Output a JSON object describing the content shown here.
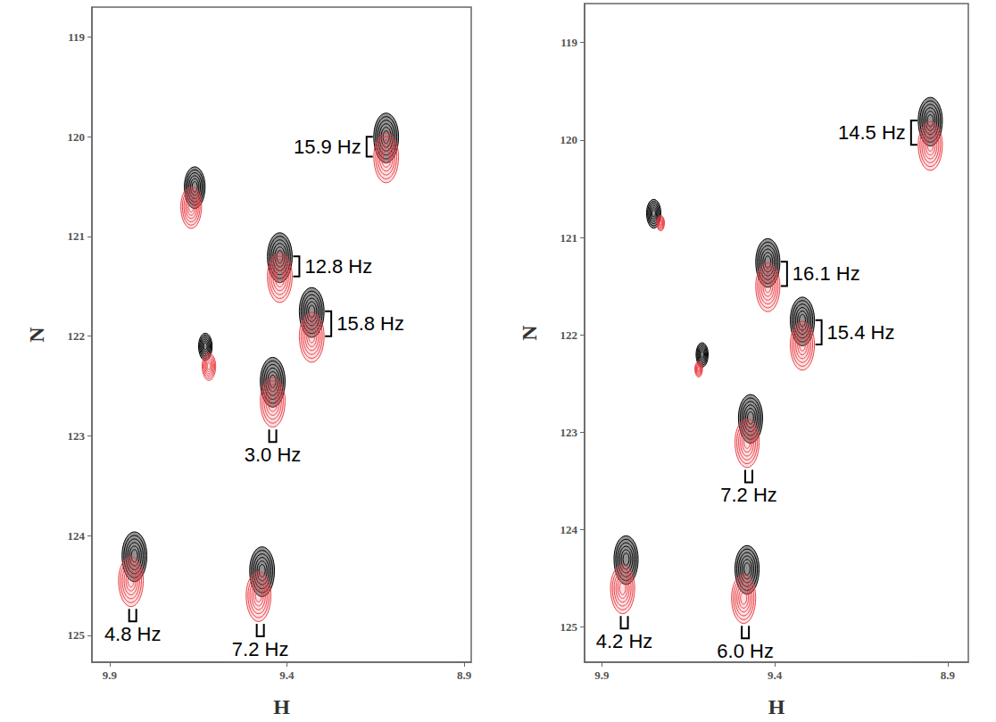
{
  "chart_data": [
    {
      "type": "scatter",
      "x_label": "H",
      "y_label": "N",
      "xlim": [
        9.95,
        8.88
      ],
      "xticks": [
        9.9,
        9.4,
        8.9
      ],
      "ylim": [
        125.27,
        118.7
      ],
      "yticks": [
        119,
        120,
        121,
        122,
        123,
        124,
        125
      ],
      "series": [
        {
          "color": "#000000",
          "x": [
            9.12,
            9.66,
            9.42,
            9.33,
            9.63,
            9.44,
            9.83,
            9.47
          ],
          "values": [
            120.0,
            120.5,
            121.2,
            121.75,
            122.1,
            122.45,
            124.2,
            124.35
          ],
          "intensity": [
            1,
            0.7,
            1,
            1,
            0.3,
            1,
            1,
            1
          ]
        },
        {
          "color": "#e8333a",
          "x": [
            9.12,
            9.67,
            9.42,
            9.33,
            9.62,
            9.44,
            9.84,
            9.48
          ],
          "values": [
            120.2,
            120.7,
            121.4,
            122.0,
            122.3,
            122.65,
            124.45,
            124.6
          ],
          "intensity": [
            1,
            0.7,
            1,
            1,
            0.3,
            1,
            1,
            1
          ]
        }
      ],
      "annotations": [
        {
          "text": "15.9 Hz",
          "peak": 0
        },
        {
          "text": "12.8 Hz",
          "peak": 2
        },
        {
          "text": "15.8 Hz",
          "peak": 3
        },
        {
          "text": "3.0 Hz",
          "peak": 5
        },
        {
          "text": "4.8 Hz",
          "peak": 6
        },
        {
          "text": "7.2 Hz",
          "peak": 7
        }
      ]
    },
    {
      "type": "scatter",
      "x_label": "H",
      "y_label": "N",
      "xlim": [
        9.95,
        8.84
      ],
      "xticks": [
        9.9,
        9.4,
        8.9
      ],
      "ylim": [
        125.36,
        118.6
      ],
      "yticks": [
        119,
        120,
        121,
        122,
        123,
        124,
        125
      ],
      "series": [
        {
          "color": "#000000",
          "x": [
            8.95,
            9.75,
            9.42,
            9.32,
            9.61,
            9.47,
            9.83,
            9.48
          ],
          "values": [
            119.8,
            120.75,
            121.25,
            121.85,
            122.2,
            122.85,
            124.3,
            124.4
          ],
          "intensity": [
            1,
            0.35,
            1,
            1,
            0.25,
            1,
            1,
            1
          ]
        },
        {
          "color": "#e8333a",
          "x": [
            8.95,
            9.73,
            9.42,
            9.32,
            9.62,
            9.48,
            9.84,
            9.49
          ],
          "values": [
            120.05,
            120.85,
            121.5,
            122.1,
            122.35,
            123.1,
            124.6,
            124.7
          ],
          "intensity": [
            1,
            0.1,
            1,
            1,
            0.1,
            1,
            1,
            1
          ]
        }
      ],
      "annotations": [
        {
          "text": "14.5 Hz",
          "peak": 0
        },
        {
          "text": "16.1 Hz",
          "peak": 2
        },
        {
          "text": "15.4 Hz",
          "peak": 3
        },
        {
          "text": "7.2 Hz",
          "peak": 5
        },
        {
          "text": "4.2 Hz",
          "peak": 6
        },
        {
          "text": "6.0 Hz",
          "peak": 7
        }
      ]
    }
  ]
}
